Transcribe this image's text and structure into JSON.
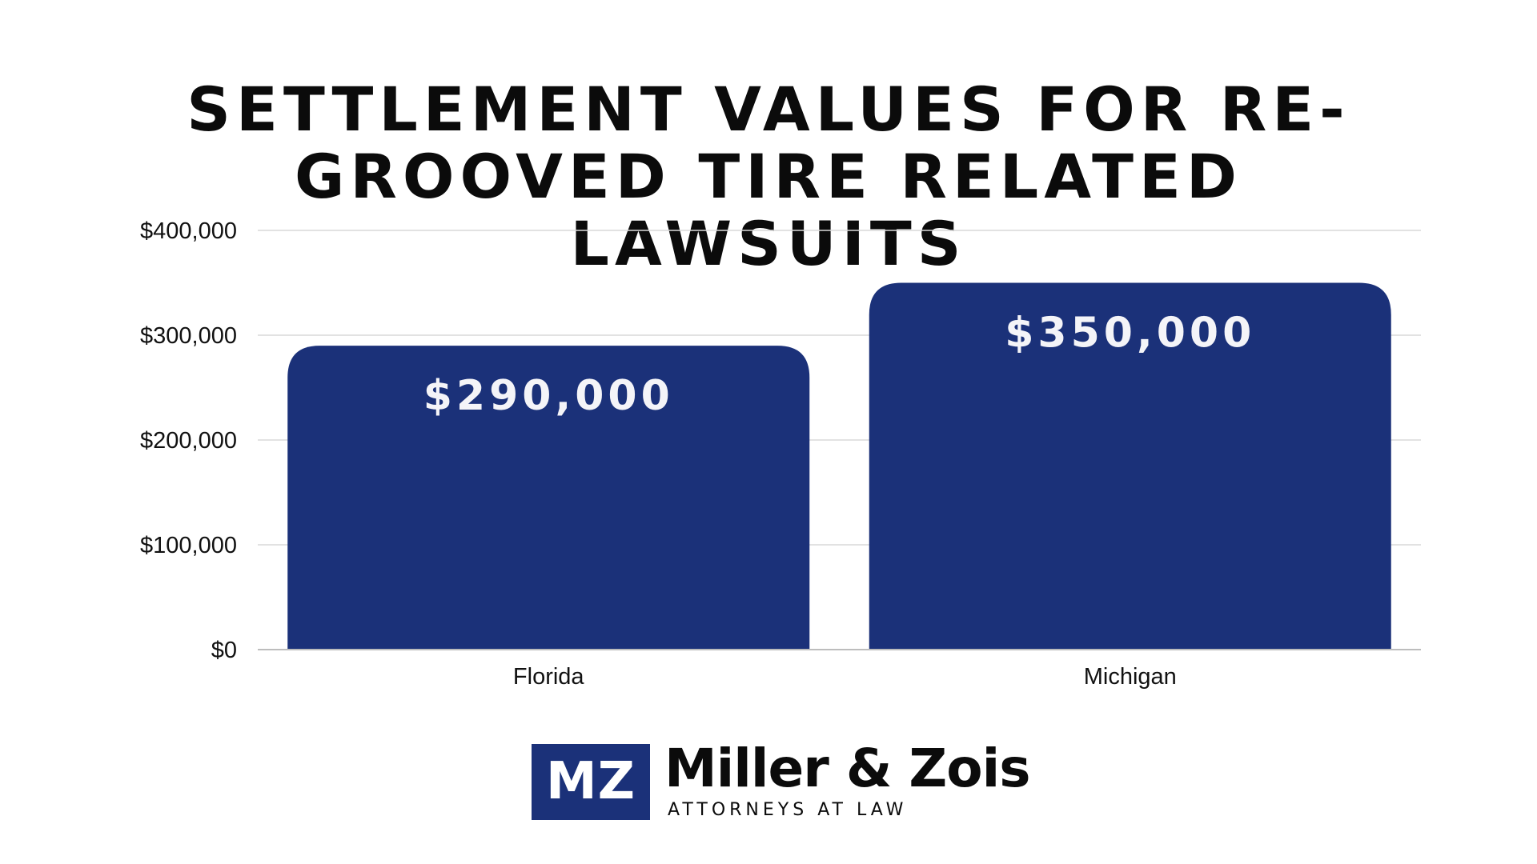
{
  "colors": {
    "bar": "#1b3179",
    "grid": "#d9d9d9",
    "title": "#0b0b0b",
    "brand": "#1b3179"
  },
  "chart_data": {
    "type": "bar",
    "title": "SETTLEMENT VALUES FOR RE-GROOVED TIRE RELATED LAWSUITS",
    "title_lines": [
      "SETTLEMENT VALUES FOR RE-",
      "GROOVED TIRE RELATED LAWSUITS"
    ],
    "categories": [
      "Florida",
      "Michigan"
    ],
    "values": [
      290000,
      350000
    ],
    "data_labels": [
      "$290,000",
      "$350,000"
    ],
    "xlabel": "",
    "ylabel": "",
    "ylim": [
      0,
      400000
    ],
    "yticks": [
      0,
      100000,
      200000,
      300000,
      400000
    ],
    "ytick_labels": [
      "$0",
      "$100,000",
      "$200,000",
      "$300,000",
      "$400,000"
    ],
    "grid": true,
    "legend": "none"
  },
  "logo": {
    "monogram": "MZ",
    "name": "Miller & Zois",
    "tagline": "ATTORNEYS AT LAW"
  }
}
